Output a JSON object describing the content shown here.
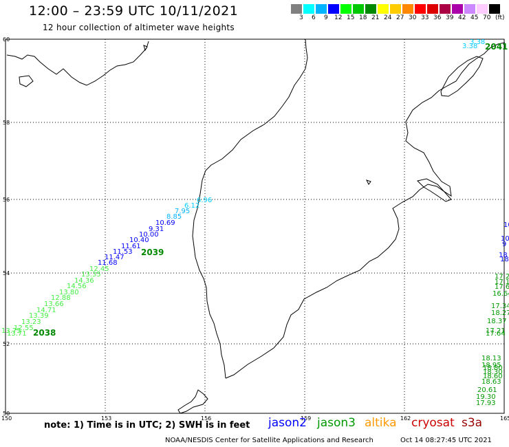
{
  "header": {
    "title": "12:00 – 23:59 UTC 10/11/2021",
    "subtitle": "12 hour collection of altimeter wave heights"
  },
  "colorbar": {
    "unit": "(ft)",
    "colors": [
      "#808080",
      "#00ffff",
      "#00b4ff",
      "#0000ff",
      "#00ff00",
      "#00c800",
      "#008800",
      "#ffff00",
      "#ffcc00",
      "#ff8800",
      "#ff0000",
      "#dd0000",
      "#aa0044",
      "#aa00aa",
      "#cc88ff",
      "#ffccff",
      "#000000"
    ],
    "labels": [
      "3",
      "6",
      "9",
      "12",
      "15",
      "18",
      "21",
      "24",
      "27",
      "30",
      "33",
      "36",
      "39",
      "42",
      "45",
      "70"
    ]
  },
  "map": {
    "lat_labels": [
      "60",
      "58",
      "56",
      "54",
      "52",
      "50"
    ],
    "lon_labels": [
      "150",
      "153",
      "156",
      "159",
      "162",
      "165"
    ],
    "tracks": [
      {
        "label": "2038",
        "color": "#008800"
      },
      {
        "label": "2039",
        "color": "#008800"
      },
      {
        "label": "2041",
        "color": "#008800"
      }
    ],
    "points": [
      {
        "v": "6.96",
        "c": "#00ccff"
      },
      {
        "v": "6.12",
        "c": "#00ccff"
      },
      {
        "v": "7.95",
        "c": "#00b4ff"
      },
      {
        "v": "8.85",
        "c": "#00b4ff"
      },
      {
        "v": "10.69",
        "c": "#0000ff"
      },
      {
        "v": "9.31",
        "c": "#0000ff"
      },
      {
        "v": "10.00",
        "c": "#0000ff"
      },
      {
        "v": "10.40",
        "c": "#0000ff"
      },
      {
        "v": "11.61",
        "c": "#0000ff"
      },
      {
        "v": "11.53",
        "c": "#0000ff"
      },
      {
        "v": "11.47",
        "c": "#0000ff"
      },
      {
        "v": "11.68",
        "c": "#0000ff"
      },
      {
        "v": "12.45",
        "c": "#44ee44"
      },
      {
        "v": "13.35",
        "c": "#44ee44"
      },
      {
        "v": "14.36",
        "c": "#44ee44"
      },
      {
        "v": "14.56",
        "c": "#44ee44"
      },
      {
        "v": "13.80",
        "c": "#44ee44"
      },
      {
        "v": "12.88",
        "c": "#44ee44"
      },
      {
        "v": "13.66",
        "c": "#44ee44"
      },
      {
        "v": "14.71",
        "c": "#44ee44"
      },
      {
        "v": "13.39",
        "c": "#44ee44"
      },
      {
        "v": "13.23",
        "c": "#44ee44"
      },
      {
        "v": "12.55",
        "c": "#44ee44"
      },
      {
        "v": "13.71",
        "c": "#44ee44"
      },
      {
        "v": "13.75",
        "c": "#44ee44"
      },
      {
        "v": "3.38",
        "c": "#00ccff"
      },
      {
        "v": "3.38",
        "c": "#00ccff"
      },
      {
        "v": "10",
        "c": "#0000ff"
      },
      {
        "v": "10",
        "c": "#0000ff"
      },
      {
        "v": "9",
        "c": "#0000ff"
      },
      {
        "v": "18",
        "c": "#0000ff"
      },
      {
        "v": "18",
        "c": "#0000ff"
      },
      {
        "v": "17.2",
        "c": "#009900"
      },
      {
        "v": "17.1",
        "c": "#009900"
      },
      {
        "v": "17.6",
        "c": "#009900"
      },
      {
        "v": "16.64",
        "c": "#009900"
      },
      {
        "v": "17.34",
        "c": "#009900"
      },
      {
        "v": "18.27",
        "c": "#009900"
      },
      {
        "v": "18.37",
        "c": "#009900"
      },
      {
        "v": "17.21",
        "c": "#009900"
      },
      {
        "v": "17.64",
        "c": "#009900"
      },
      {
        "v": "18.80",
        "c": "#009900"
      },
      {
        "v": "18.30",
        "c": "#009900"
      },
      {
        "v": "18.60",
        "c": "#009900"
      },
      {
        "v": "18.13",
        "c": "#009900"
      },
      {
        "v": "18.95",
        "c": "#009900"
      },
      {
        "v": "18.63",
        "c": "#009900"
      },
      {
        "v": "20.61",
        "c": "#009900"
      },
      {
        "v": "19.30",
        "c": "#009900"
      },
      {
        "v": "17.93",
        "c": "#009900"
      }
    ]
  },
  "footer": {
    "note": "note: 1) Time is in UTC; 2) SWH is in feet",
    "legend": {
      "jason2": "jason2",
      "jason3": "jason3",
      "altika": "altika",
      "cryosat": "cryosat",
      "s3a": "s3a"
    },
    "credit": "NOAA/NESDIS Center for Satellite Applications and Research",
    "timestamp": "Oct 14 08:27:45 UTC 2021"
  }
}
